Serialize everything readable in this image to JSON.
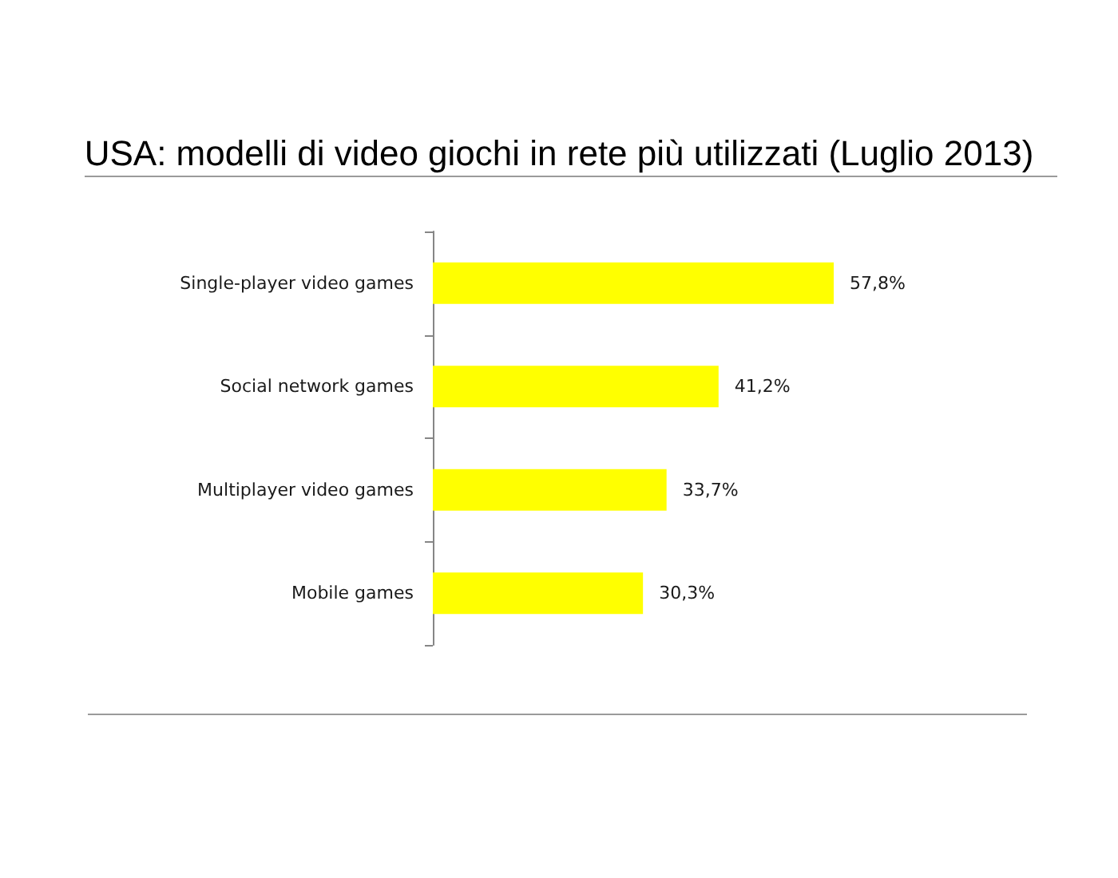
{
  "chart_data": {
    "type": "bar",
    "orientation": "horizontal",
    "title": "USA: modelli di video giochi in rete più utilizzati (Luglio 2013)",
    "categories": [
      "Single-player video games",
      "Social network games",
      "Multiplayer video games",
      "Mobile games"
    ],
    "values": [
      57.8,
      41.2,
      33.7,
      30.3
    ],
    "color": "#ffff00",
    "value_labels": [
      "57,8%",
      "41,2%",
      "33,7%",
      "30,3%"
    ],
    "tick_labels": "y"
  }
}
